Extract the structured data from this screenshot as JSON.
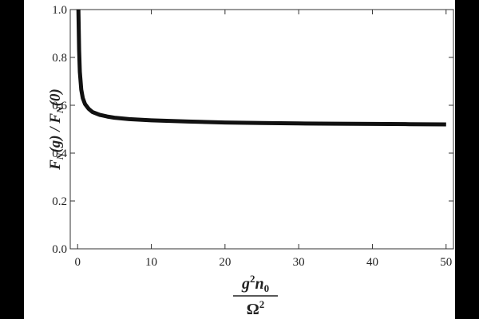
{
  "chart_data": {
    "type": "line",
    "title": "",
    "xlabel": {
      "numerator_base": "g",
      "numerator_exp": "2",
      "numerator_var": "n",
      "numerator_sub": "0",
      "denominator_base": "Ω",
      "denominator_exp": "2"
    },
    "ylabel": {
      "part1": "F",
      "sub1": "N",
      "part2": "(g) / F",
      "sub2": "N",
      "part3": "(0)"
    },
    "xlim": [
      -1,
      51
    ],
    "ylim": [
      0.0,
      1.0
    ],
    "xticks": [
      0,
      10,
      20,
      30,
      40,
      50
    ],
    "yticks": [
      0.0,
      0.2,
      0.4,
      0.6,
      0.8,
      1.0
    ],
    "ytick_labels": [
      "0.0",
      "0.2",
      "0.4",
      "0.6",
      "0.8",
      "1.0"
    ],
    "xtick_labels": [
      "0",
      "10",
      "20",
      "30",
      "40",
      "50"
    ],
    "grid": false,
    "series": [
      {
        "color": "#111111",
        "x": [
          0.1,
          0.2,
          0.3,
          0.5,
          0.7,
          1.0,
          1.5,
          2,
          3,
          4,
          5,
          7,
          10,
          15,
          20,
          25,
          30,
          35,
          40,
          45,
          50
        ],
        "values": [
          1.0,
          0.83,
          0.74,
          0.665,
          0.63,
          0.605,
          0.585,
          0.572,
          0.56,
          0.553,
          0.548,
          0.542,
          0.537,
          0.532,
          0.528,
          0.526,
          0.524,
          0.523,
          0.522,
          0.521,
          0.52
        ]
      }
    ]
  }
}
